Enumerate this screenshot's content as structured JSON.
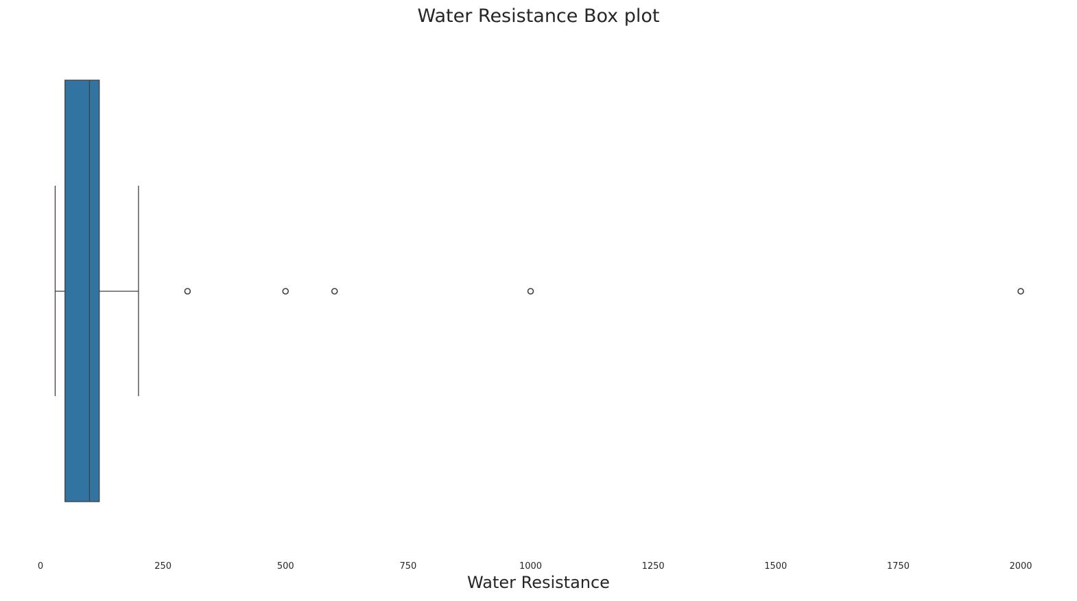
{
  "chart_data": {
    "type": "box",
    "orientation": "horizontal",
    "title": "Water Resistance Box plot",
    "xlabel": "Water Resistance",
    "ylabel": "",
    "xlim": [
      0,
      2000
    ],
    "xticks": [
      0,
      250,
      500,
      750,
      1000,
      1250,
      1500,
      1750,
      2000
    ],
    "xtick_labels": [
      "0",
      "250",
      "500",
      "750",
      "1000",
      "1250",
      "1500",
      "1750",
      "2000"
    ],
    "grid": false,
    "box": {
      "whisker_low": 30,
      "q1": 50,
      "median": 100,
      "q3": 120,
      "whisker_high": 200
    },
    "outliers": [
      300,
      500,
      600,
      1000,
      2000
    ],
    "colors": {
      "box_fill": "#3274a1",
      "line": "#3f3f3f",
      "text": "#262626"
    }
  }
}
